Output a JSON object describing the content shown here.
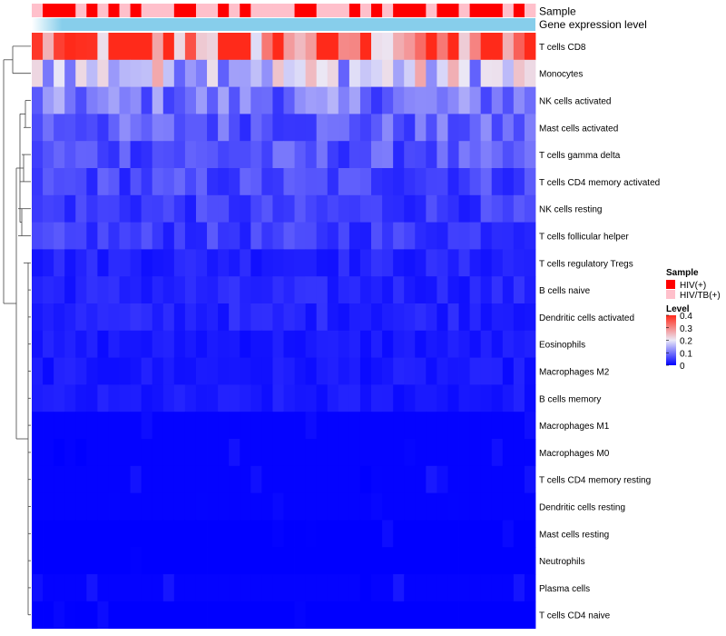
{
  "chart_data": {
    "type": "heatmap",
    "title": "",
    "annotation_tracks": [
      {
        "name": "Sample",
        "kind": "categorical"
      },
      {
        "name": "Gene expression level",
        "kind": "continuous"
      }
    ],
    "sample_groups": [
      "HIV/TB(+)",
      "HIV(+)",
      "HIV(+)",
      "HIV(+)",
      "HIV/TB(+)",
      "HIV(+)",
      "HIV/TB(+)",
      "HIV(+)",
      "HIV/TB(+)",
      "HIV(+)",
      "HIV/TB(+)",
      "HIV/TB(+)",
      "HIV/TB(+)",
      "HIV(+)",
      "HIV(+)",
      "HIV/TB(+)",
      "HIV/TB(+)",
      "HIV(+)",
      "HIV/TB(+)",
      "HIV(+)",
      "HIV/TB(+)",
      "HIV/TB(+)",
      "HIV/TB(+)",
      "HIV/TB(+)",
      "HIV(+)",
      "HIV(+)",
      "HIV/TB(+)",
      "HIV/TB(+)",
      "HIV/TB(+)",
      "HIV(+)",
      "HIV/TB(+)",
      "HIV(+)",
      "HIV/TB(+)",
      "HIV(+)",
      "HIV(+)",
      "HIV(+)",
      "HIV/TB(+)",
      "HIV(+)",
      "HIV(+)",
      "HIV/TB(+)",
      "HIV(+)",
      "HIV(+)",
      "HIV(+)",
      "HIV/TB(+)",
      "HIV(+)",
      "HIV/TB(+)"
    ],
    "rows": [
      "T cells CD8",
      "Monocytes",
      "NK cells activated",
      "Mast cells activated",
      "T cells gamma delta",
      "T cells CD4 memory activated",
      "NK cells resting",
      "T cells follicular helper",
      "T cells regulatory  Tregs",
      "B cells naive",
      "Dendritic cells activated",
      "Eosinophils",
      "Macrophages M2",
      "B cells memory",
      "Macrophages M1",
      "Macrophages M0",
      "T cells CD4 memory resting",
      "Dendritic cells resting",
      "Mast cells resting",
      "Neutrophils",
      "Plasma cells",
      "T cells CD4 naive"
    ],
    "approx_row_levels": [
      0.33,
      0.18,
      0.1,
      0.08,
      0.07,
      0.06,
      0.05,
      0.05,
      0.03,
      0.03,
      0.03,
      0.02,
      0.02,
      0.02,
      0.01,
      0.01,
      0.01,
      0.01,
      0.0,
      0.0,
      0.01,
      0.0
    ],
    "color_scale": {
      "min": 0,
      "max": 0.4,
      "ticks": [
        0,
        0.1,
        0.2,
        0.3,
        0.4
      ],
      "low_color": "#0000ff",
      "mid_color": "#ebe9f7",
      "high_color": "#ff2a1a"
    },
    "dendrogram": "rows clustered (left side)",
    "legend_position": "right"
  },
  "legend": {
    "sample_title": "Sample",
    "sample_entries": [
      {
        "label": "HIV(+)",
        "color": "#ff0000"
      },
      {
        "label": "HIV/TB(+)",
        "color": "#ffc0cb"
      }
    ],
    "level_title": "Level",
    "level_tick_labels": [
      "0.4",
      "0.3",
      "0.2",
      "0.1",
      "0"
    ]
  },
  "colors": {
    "expression_track": "#87ceeb",
    "track_fade": "#ffffff"
  }
}
